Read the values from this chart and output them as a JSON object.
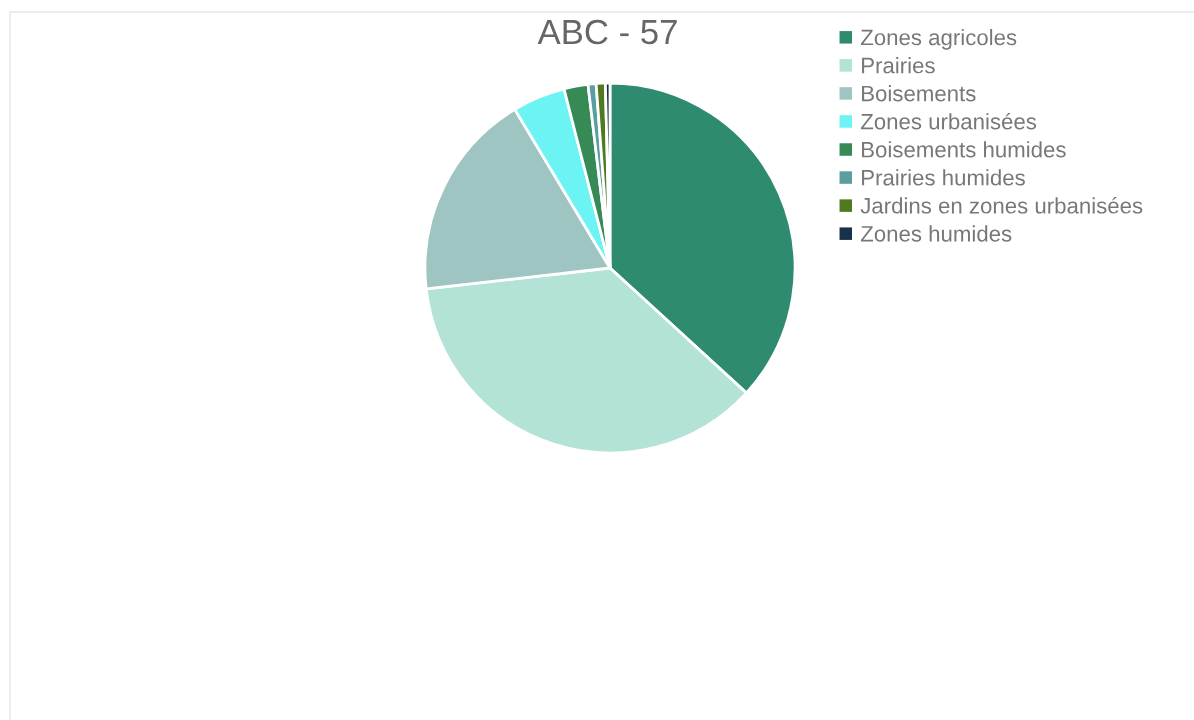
{
  "chart_data": {
    "type": "pie",
    "title": "ABC - 57",
    "categories": [
      "Zones agricoles",
      "Prairies",
      "Boisements",
      "Zones urbanisées",
      "Boisements humides",
      "Prairies humides",
      "Jardins en zones urbanisées",
      "Zones humides"
    ],
    "values": [
      36.8,
      36.4,
      18.2,
      4.6,
      2.1,
      0.7,
      0.8,
      0.4
    ],
    "colors": [
      "#2e8b6f",
      "#b3e2d6",
      "#9ec5c2",
      "#6cf4f4",
      "#358a55",
      "#5b9e9f",
      "#4f7a1f",
      "#17324a"
    ],
    "legend": "top right"
  }
}
